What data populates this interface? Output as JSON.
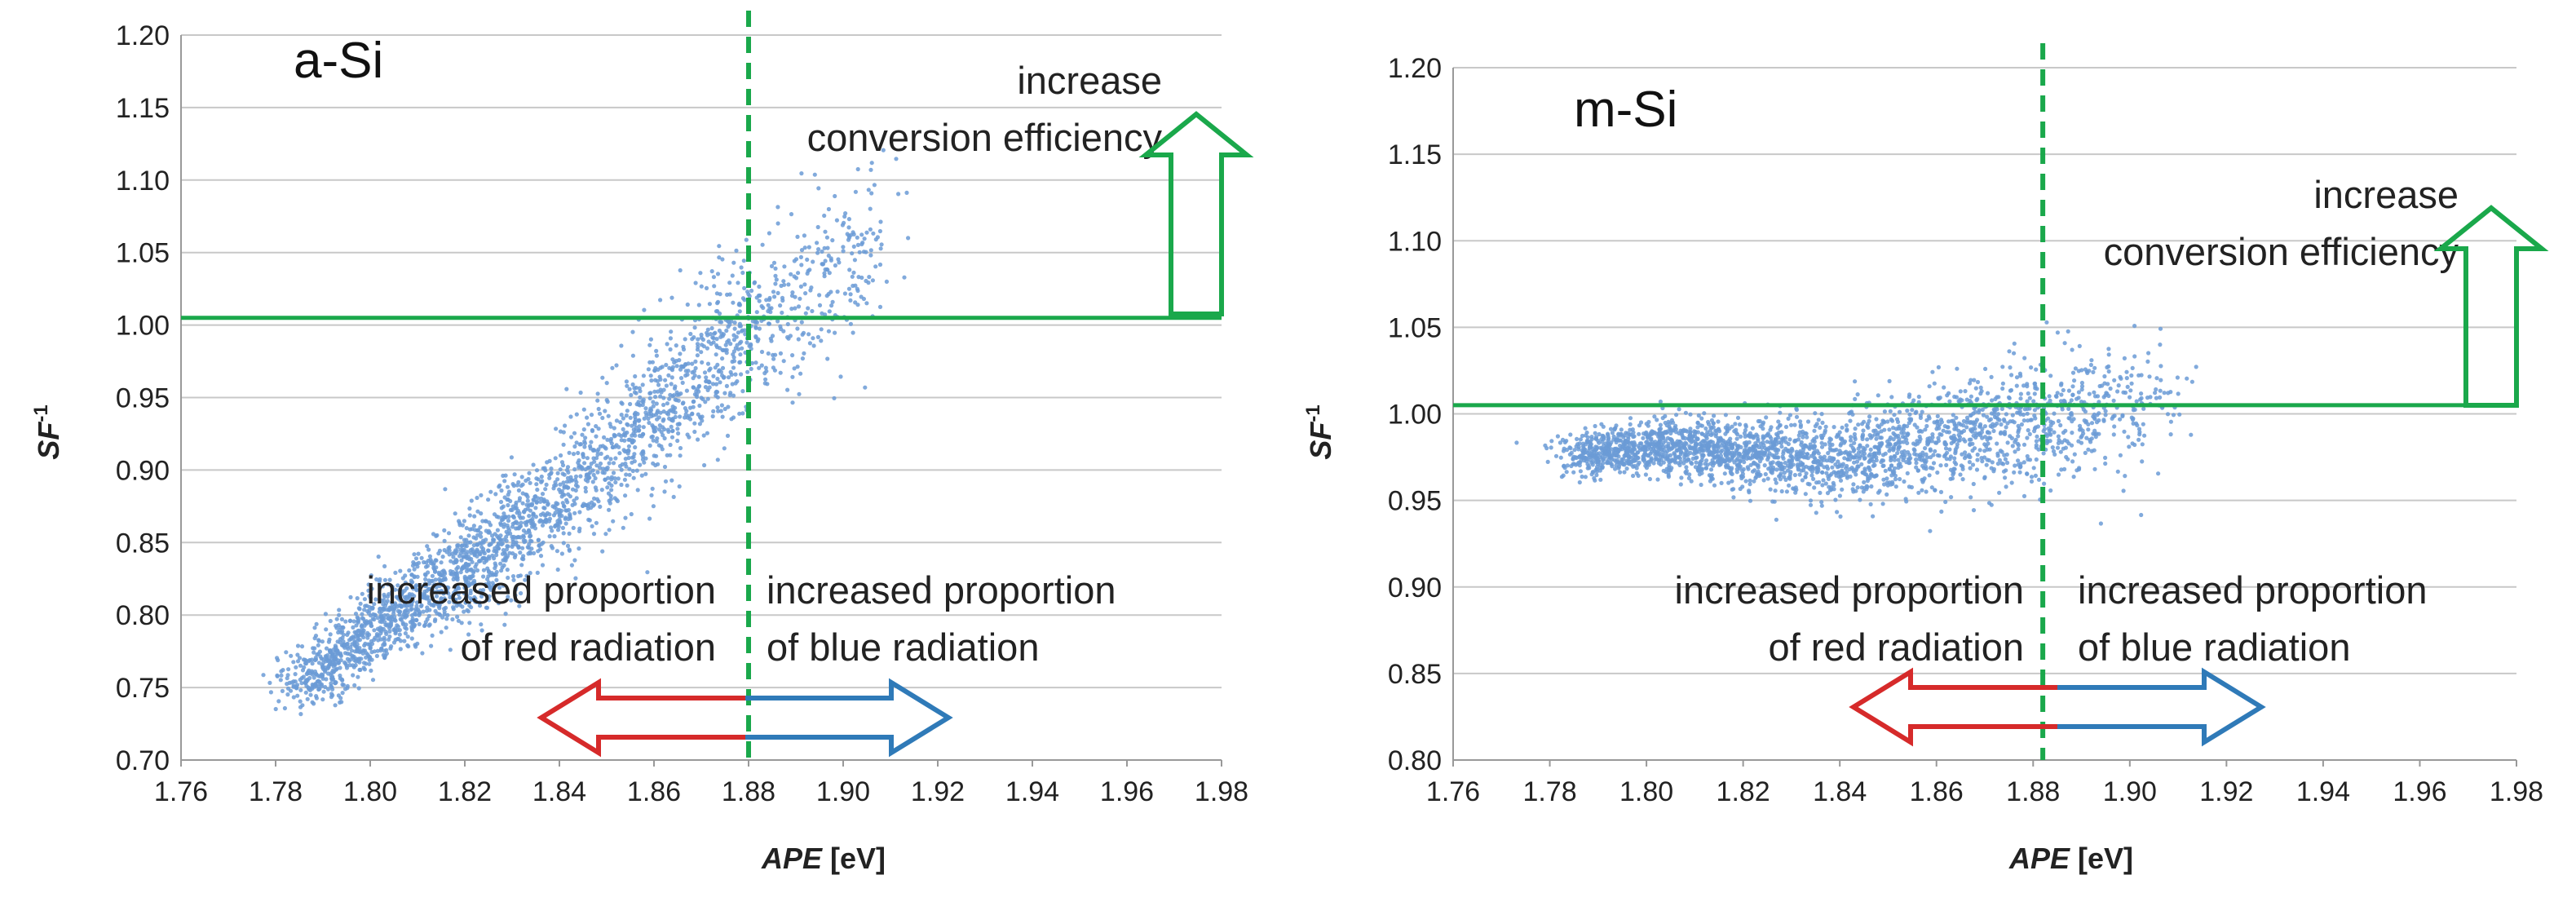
{
  "colors": {
    "green": "#1aa84b",
    "red": "#d62a2a",
    "blue": "#2f7ab8",
    "points": "#6b9bd6",
    "grid": "#c8c8c8"
  },
  "chart_data": [
    {
      "type": "scatter",
      "panel_label": "a-Si",
      "xlabel_italic": "APE",
      "xlabel_unit": " [eV]",
      "ylabel_base": "SF",
      "ylabel_sup": "-1",
      "xlim": [
        1.76,
        1.98
      ],
      "ylim": [
        0.7,
        1.2
      ],
      "xticks": [
        "1.76",
        "1.78",
        "1.80",
        "1.82",
        "1.84",
        "1.86",
        "1.88",
        "1.90",
        "1.92",
        "1.94",
        "1.96",
        "1.98"
      ],
      "yticks": [
        "0.70",
        "0.75",
        "0.80",
        "0.85",
        "0.90",
        "0.95",
        "1.00",
        "1.05",
        "1.10",
        "1.15",
        "1.20"
      ],
      "reference_x": 1.88,
      "reference_y": 1.005,
      "cloud_trend": [
        {
          "x": 1.785,
          "y": 0.75
        },
        {
          "x": 1.8,
          "y": 0.79
        },
        {
          "x": 1.82,
          "y": 0.83
        },
        {
          "x": 1.84,
          "y": 0.88
        },
        {
          "x": 1.86,
          "y": 0.94
        },
        {
          "x": 1.88,
          "y": 0.995
        },
        {
          "x": 1.895,
          "y": 1.03
        },
        {
          "x": 1.91,
          "y": 1.06
        }
      ],
      "annotations": {
        "increase": "increase",
        "conversion": "conversion efficiency",
        "red_line1": "increased proportion",
        "red_line2": "of red radiation",
        "blue_line1": "increased proportion",
        "blue_line2": "of blue radiation"
      }
    },
    {
      "type": "scatter",
      "panel_label": "m-Si",
      "xlabel_italic": "APE",
      "xlabel_unit": " [eV]",
      "ylabel_base": "SF",
      "ylabel_sup": "-1",
      "xlim": [
        1.76,
        1.98
      ],
      "ylim": [
        0.8,
        1.2
      ],
      "xticks": [
        "1.76",
        "1.78",
        "1.80",
        "1.82",
        "1.84",
        "1.86",
        "1.88",
        "1.90",
        "1.92",
        "1.94",
        "1.96",
        "1.98"
      ],
      "yticks": [
        "0.80",
        "0.85",
        "0.90",
        "0.95",
        "1.00",
        "1.05",
        "1.10",
        "1.15",
        "1.20"
      ],
      "reference_x": 1.882,
      "reference_y": 1.005,
      "cloud_trend": [
        {
          "x": 1.785,
          "y": 0.975
        },
        {
          "x": 1.8,
          "y": 0.982
        },
        {
          "x": 1.82,
          "y": 0.978
        },
        {
          "x": 1.84,
          "y": 0.975
        },
        {
          "x": 1.86,
          "y": 0.985
        },
        {
          "x": 1.88,
          "y": 0.995
        },
        {
          "x": 1.9,
          "y": 1.005
        },
        {
          "x": 1.91,
          "y": 1.01
        }
      ],
      "annotations": {
        "increase": "increase",
        "conversion": "conversion efficiency",
        "red_line1": "increased proportion",
        "red_line2": "of red radiation",
        "blue_line1": "increased proportion",
        "blue_line2": "of blue radiation"
      }
    }
  ]
}
